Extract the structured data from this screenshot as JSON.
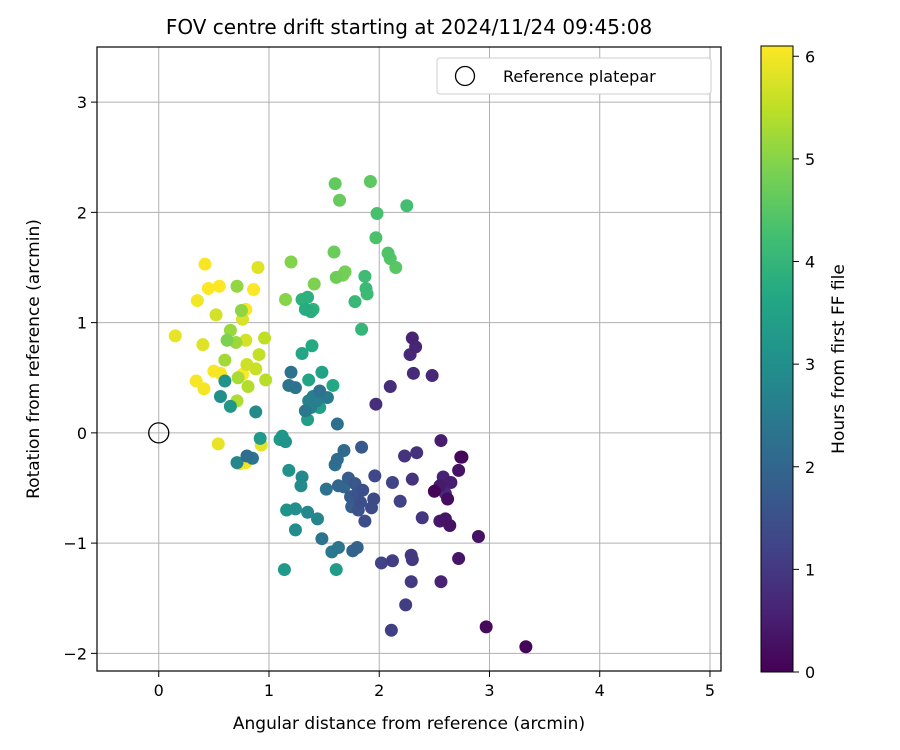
{
  "chart_data": {
    "type": "scatter",
    "title": "FOV centre drift starting at 2024/11/24 09:45:08",
    "xlabel": "Angular distance from reference (arcmin)",
    "ylabel": "Rotation from reference (arcmin)",
    "xlim": [
      -0.56,
      5.1
    ],
    "ylim": [
      -2.16,
      3.5
    ],
    "xticks": [
      0,
      1,
      2,
      3,
      4,
      5
    ],
    "yticks": [
      -2,
      -1,
      0,
      1,
      2,
      3
    ],
    "grid": true,
    "legend": {
      "position": "top-right",
      "entries": [
        "Reference platepar"
      ]
    },
    "reference_point": {
      "x": 0,
      "y": 0,
      "label": "Reference platepar"
    },
    "colorbar": {
      "label": "Hours from first FF file",
      "colormap": "viridis",
      "range": [
        0,
        6.1
      ],
      "ticks": [
        0,
        1,
        2,
        3,
        4,
        5,
        6
      ]
    },
    "points": [
      {
        "x": 3.33,
        "y": -1.94,
        "t": 0.05
      },
      {
        "x": 2.97,
        "y": -1.76,
        "t": 0.15
      },
      {
        "x": 2.9,
        "y": -0.94,
        "t": 0.3
      },
      {
        "x": 2.75,
        "y": -0.22,
        "t": 0.1
      },
      {
        "x": 2.72,
        "y": -0.34,
        "t": 0.3
      },
      {
        "x": 2.72,
        "y": -1.14,
        "t": 0.35
      },
      {
        "x": 2.5,
        "y": -0.53,
        "t": 0.05
      },
      {
        "x": 2.62,
        "y": -0.6,
        "t": 0.2
      },
      {
        "x": 2.64,
        "y": -0.84,
        "t": 0.3
      },
      {
        "x": 2.6,
        "y": -0.78,
        "t": 0.35
      },
      {
        "x": 2.55,
        "y": -0.8,
        "t": 0.4
      },
      {
        "x": 2.55,
        "y": -0.48,
        "t": 0.45
      },
      {
        "x": 2.65,
        "y": -0.45,
        "t": 0.5
      },
      {
        "x": 2.58,
        "y": -0.4,
        "t": 0.6
      },
      {
        "x": 2.6,
        "y": -0.55,
        "t": 0.7
      },
      {
        "x": 2.56,
        "y": -0.07,
        "t": 0.5
      },
      {
        "x": 2.56,
        "y": -1.35,
        "t": 0.6
      },
      {
        "x": 2.3,
        "y": 0.86,
        "t": 0.6
      },
      {
        "x": 2.33,
        "y": 0.78,
        "t": 0.65
      },
      {
        "x": 2.28,
        "y": 0.71,
        "t": 0.7
      },
      {
        "x": 2.31,
        "y": 0.54,
        "t": 0.75
      },
      {
        "x": 2.48,
        "y": 0.52,
        "t": 0.7
      },
      {
        "x": 2.1,
        "y": 0.42,
        "t": 0.8
      },
      {
        "x": 1.97,
        "y": 0.26,
        "t": 0.8
      },
      {
        "x": 2.34,
        "y": -0.18,
        "t": 0.85
      },
      {
        "x": 2.23,
        "y": -0.21,
        "t": 0.9
      },
      {
        "x": 2.3,
        "y": -0.42,
        "t": 0.9
      },
      {
        "x": 2.39,
        "y": -0.77,
        "t": 0.95
      },
      {
        "x": 2.29,
        "y": -1.11,
        "t": 1.0
      },
      {
        "x": 2.3,
        "y": -1.15,
        "t": 1.0
      },
      {
        "x": 2.29,
        "y": -1.35,
        "t": 1.05
      },
      {
        "x": 2.24,
        "y": -1.56,
        "t": 1.1
      },
      {
        "x": 2.12,
        "y": -1.16,
        "t": 1.1
      },
      {
        "x": 2.11,
        "y": -1.79,
        "t": 1.15
      },
      {
        "x": 2.02,
        "y": -1.18,
        "t": 1.2
      },
      {
        "x": 2.19,
        "y": -0.62,
        "t": 1.2
      },
      {
        "x": 2.12,
        "y": -0.45,
        "t": 1.25
      },
      {
        "x": 1.96,
        "y": -0.39,
        "t": 1.3
      },
      {
        "x": 1.95,
        "y": -0.6,
        "t": 1.35
      },
      {
        "x": 1.93,
        "y": -0.68,
        "t": 1.4
      },
      {
        "x": 1.87,
        "y": -0.8,
        "t": 1.45
      },
      {
        "x": 1.85,
        "y": -0.52,
        "t": 1.5
      },
      {
        "x": 1.83,
        "y": -0.63,
        "t": 1.5
      },
      {
        "x": 1.81,
        "y": -0.7,
        "t": 1.55
      },
      {
        "x": 1.8,
        "y": -0.55,
        "t": 1.6
      },
      {
        "x": 1.78,
        "y": -0.46,
        "t": 1.65
      },
      {
        "x": 1.84,
        "y": -0.13,
        "t": 1.7
      },
      {
        "x": 1.74,
        "y": -0.58,
        "t": 1.75
      },
      {
        "x": 1.72,
        "y": -0.41,
        "t": 1.8
      },
      {
        "x": 1.75,
        "y": -0.67,
        "t": 1.85
      },
      {
        "x": 1.8,
        "y": -1.04,
        "t": 1.9
      },
      {
        "x": 1.76,
        "y": -1.07,
        "t": 1.95
      },
      {
        "x": 1.63,
        "y": -0.48,
        "t": 2.0
      },
      {
        "x": 1.68,
        "y": -0.49,
        "t": 2.05
      },
      {
        "x": 1.68,
        "y": -0.16,
        "t": 2.1
      },
      {
        "x": 1.62,
        "y": -0.24,
        "t": 2.15
      },
      {
        "x": 1.6,
        "y": -0.29,
        "t": 2.2
      },
      {
        "x": 1.62,
        "y": 0.08,
        "t": 2.25
      },
      {
        "x": 1.52,
        "y": -0.51,
        "t": 2.3
      },
      {
        "x": 1.48,
        "y": -0.96,
        "t": 2.35
      },
      {
        "x": 1.63,
        "y": -1.04,
        "t": 2.4
      },
      {
        "x": 1.57,
        "y": -1.08,
        "t": 2.45
      },
      {
        "x": 1.53,
        "y": 0.32,
        "t": 2.5
      },
      {
        "x": 1.43,
        "y": 0.29,
        "t": 2.55
      },
      {
        "x": 1.4,
        "y": 0.33,
        "t": 2.6
      },
      {
        "x": 1.36,
        "y": 0.29,
        "t": 2.65
      },
      {
        "x": 1.38,
        "y": 0.23,
        "t": 2.7
      },
      {
        "x": 1.44,
        "y": -0.78,
        "t": 2.75
      },
      {
        "x": 1.35,
        "y": -0.72,
        "t": 2.8
      },
      {
        "x": 1.3,
        "y": -0.4,
        "t": 2.85
      },
      {
        "x": 1.29,
        "y": -0.48,
        "t": 2.9
      },
      {
        "x": 1.24,
        "y": -0.88,
        "t": 2.95
      },
      {
        "x": 1.24,
        "y": -0.69,
        "t": 3.0
      },
      {
        "x": 1.16,
        "y": -0.7,
        "t": 3.05
      },
      {
        "x": 1.18,
        "y": -0.34,
        "t": 3.1
      },
      {
        "x": 1.15,
        "y": -0.08,
        "t": 3.15
      },
      {
        "x": 1.12,
        "y": -0.03,
        "t": 3.2
      },
      {
        "x": 1.1,
        "y": -0.06,
        "t": 3.25
      },
      {
        "x": 1.14,
        "y": -1.24,
        "t": 3.3
      },
      {
        "x": 1.61,
        "y": -1.24,
        "t": 3.35
      },
      {
        "x": 1.35,
        "y": 0.12,
        "t": 3.4
      },
      {
        "x": 1.46,
        "y": 0.23,
        "t": 3.45
      },
      {
        "x": 1.48,
        "y": 0.55,
        "t": 3.5
      },
      {
        "x": 1.36,
        "y": 0.48,
        "t": 3.55
      },
      {
        "x": 1.3,
        "y": 0.72,
        "t": 3.6
      },
      {
        "x": 1.58,
        "y": 0.43,
        "t": 3.65
      },
      {
        "x": 1.39,
        "y": 0.79,
        "t": 3.7
      },
      {
        "x": 1.33,
        "y": 1.12,
        "t": 3.75
      },
      {
        "x": 1.38,
        "y": 1.1,
        "t": 3.8
      },
      {
        "x": 1.35,
        "y": 1.23,
        "t": 3.85
      },
      {
        "x": 1.3,
        "y": 1.21,
        "t": 3.9
      },
      {
        "x": 1.4,
        "y": 1.12,
        "t": 3.95
      },
      {
        "x": 1.84,
        "y": 0.94,
        "t": 4.0
      },
      {
        "x": 1.78,
        "y": 1.19,
        "t": 4.05
      },
      {
        "x": 1.88,
        "y": 1.31,
        "t": 4.1
      },
      {
        "x": 1.89,
        "y": 1.26,
        "t": 4.15
      },
      {
        "x": 1.87,
        "y": 1.42,
        "t": 4.2
      },
      {
        "x": 2.25,
        "y": 2.06,
        "t": 4.25
      },
      {
        "x": 1.98,
        "y": 1.99,
        "t": 4.3
      },
      {
        "x": 1.97,
        "y": 1.77,
        "t": 4.35
      },
      {
        "x": 2.08,
        "y": 1.63,
        "t": 4.4
      },
      {
        "x": 2.1,
        "y": 1.58,
        "t": 4.45
      },
      {
        "x": 2.15,
        "y": 1.5,
        "t": 4.5
      },
      {
        "x": 1.92,
        "y": 2.28,
        "t": 4.55
      },
      {
        "x": 1.6,
        "y": 2.26,
        "t": 4.6
      },
      {
        "x": 1.64,
        "y": 2.11,
        "t": 4.65
      },
      {
        "x": 1.59,
        "y": 1.64,
        "t": 4.7
      },
      {
        "x": 1.61,
        "y": 1.41,
        "t": 4.75
      },
      {
        "x": 1.69,
        "y": 1.46,
        "t": 4.8
      },
      {
        "x": 1.67,
        "y": 1.43,
        "t": 4.85
      },
      {
        "x": 1.41,
        "y": 1.35,
        "t": 4.9
      },
      {
        "x": 1.2,
        "y": 1.55,
        "t": 4.95
      },
      {
        "x": 1.15,
        "y": 1.21,
        "t": 5.0
      },
      {
        "x": 0.75,
        "y": 1.11,
        "t": 5.05
      },
      {
        "x": 0.71,
        "y": 1.33,
        "t": 5.1
      },
      {
        "x": 0.65,
        "y": 0.93,
        "t": 5.15
      },
      {
        "x": 0.7,
        "y": 0.82,
        "t": 5.2
      },
      {
        "x": 0.6,
        "y": 0.66,
        "t": 5.25
      },
      {
        "x": 0.72,
        "y": 0.5,
        "t": 5.3
      },
      {
        "x": 0.71,
        "y": 0.29,
        "t": 5.35
      },
      {
        "x": 0.81,
        "y": 0.42,
        "t": 5.4
      },
      {
        "x": 0.97,
        "y": 0.48,
        "t": 5.45
      },
      {
        "x": 0.96,
        "y": 0.86,
        "t": 5.5
      },
      {
        "x": 0.91,
        "y": 0.71,
        "t": 5.55
      },
      {
        "x": 0.88,
        "y": 0.58,
        "t": 5.6
      },
      {
        "x": 0.8,
        "y": 0.62,
        "t": 5.65
      },
      {
        "x": 0.79,
        "y": 0.84,
        "t": 5.7
      },
      {
        "x": 0.76,
        "y": 1.03,
        "t": 5.75
      },
      {
        "x": 0.9,
        "y": 1.5,
        "t": 5.8
      },
      {
        "x": 0.93,
        "y": -0.11,
        "t": 5.85
      },
      {
        "x": 0.54,
        "y": -0.1,
        "t": 5.9
      },
      {
        "x": 0.73,
        "y": -0.28,
        "t": 5.95
      },
      {
        "x": 0.79,
        "y": -0.27,
        "t": 6.0
      },
      {
        "x": 0.41,
        "y": 0.4,
        "t": 6.02
      },
      {
        "x": 0.34,
        "y": 0.47,
        "t": 6.04
      },
      {
        "x": 0.5,
        "y": 0.56,
        "t": 6.05
      },
      {
        "x": 0.56,
        "y": 0.54,
        "t": 6.06
      },
      {
        "x": 0.76,
        "y": 0.53,
        "t": 6.07
      },
      {
        "x": 0.86,
        "y": 1.3,
        "t": 6.08
      },
      {
        "x": 0.79,
        "y": 1.12,
        "t": 6.09
      },
      {
        "x": 0.55,
        "y": 1.33,
        "t": 6.1
      },
      {
        "x": 0.45,
        "y": 1.31,
        "t": 6.1
      },
      {
        "x": 0.42,
        "y": 1.53,
        "t": 6.05
      },
      {
        "x": 0.35,
        "y": 1.2,
        "t": 6.0
      },
      {
        "x": 0.15,
        "y": 0.88,
        "t": 5.9
      },
      {
        "x": 0.4,
        "y": 0.8,
        "t": 5.8
      },
      {
        "x": 0.52,
        "y": 1.07,
        "t": 5.7
      },
      {
        "x": 0.6,
        "y": 0.47,
        "t": 3.1
      },
      {
        "x": 0.65,
        "y": 0.24,
        "t": 3.2
      },
      {
        "x": 0.56,
        "y": 0.33,
        "t": 3.0
      },
      {
        "x": 0.62,
        "y": 0.84,
        "t": 4.9
      },
      {
        "x": 0.88,
        "y": 0.19,
        "t": 2.9
      },
      {
        "x": 0.85,
        "y": -0.23,
        "t": 2.4
      },
      {
        "x": 0.8,
        "y": -0.21,
        "t": 2.2
      },
      {
        "x": 0.71,
        "y": -0.27,
        "t": 2.8
      },
      {
        "x": 0.92,
        "y": -0.05,
        "t": 3.3
      },
      {
        "x": 1.2,
        "y": 0.55,
        "t": 2.3
      },
      {
        "x": 1.18,
        "y": 0.43,
        "t": 2.4
      },
      {
        "x": 1.24,
        "y": 0.41,
        "t": 2.35
      },
      {
        "x": 1.33,
        "y": 0.2,
        "t": 2.45
      },
      {
        "x": 1.46,
        "y": 0.38,
        "t": 2.3
      },
      {
        "x": 2.74,
        "y": -0.22,
        "t": 0.12
      }
    ]
  }
}
